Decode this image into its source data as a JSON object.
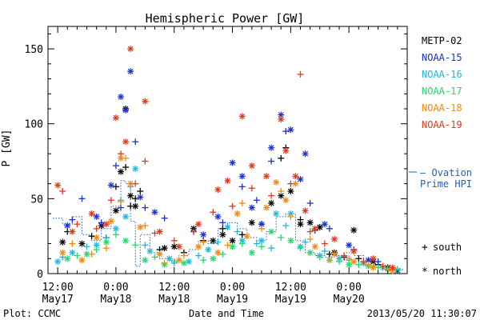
{
  "chart_data": {
    "type": "scatter",
    "title": "Hemispheric Power [GW]",
    "xlabel": "Date and Time",
    "ylabel": "P [GW]",
    "ylim": [
      0,
      165
    ],
    "xlim_hours": [
      -2,
      72
    ],
    "yticks": [
      0,
      50,
      100,
      150
    ],
    "xticks": [
      {
        "hours": 0,
        "time": "12:00",
        "date": "May17"
      },
      {
        "hours": 12,
        "time": "0:00",
        "date": "May18"
      },
      {
        "hours": 24,
        "time": "12:00",
        "date": "May18"
      },
      {
        "hours": 36,
        "time": "0:00",
        "date": "May19"
      },
      {
        "hours": 48,
        "time": "12:00",
        "date": "May19"
      },
      {
        "hours": 60,
        "time": "0:00",
        "date": "May20"
      }
    ],
    "grid": false,
    "footer_left": "Plot: CCMC",
    "footer_right": "2013/05/20 11:30:07",
    "symbol_legend": [
      {
        "symbol": "+",
        "label": "south"
      },
      {
        "symbol": "*",
        "label": "north"
      }
    ],
    "ovation_label": [
      "— Ovation",
      "Prime HPI"
    ],
    "ovation_color": "#1f5fbf",
    "series": [
      {
        "name": "METP-02",
        "color": "#000000",
        "north": [
          [
            1,
            21
          ],
          [
            5,
            20
          ],
          [
            9,
            32
          ],
          [
            12,
            42
          ],
          [
            13,
            68
          ],
          [
            14,
            110
          ],
          [
            15,
            52
          ],
          [
            16,
            45
          ],
          [
            22,
            17
          ],
          [
            24,
            18
          ],
          [
            28,
            30
          ],
          [
            32,
            22
          ],
          [
            34,
            26
          ],
          [
            36,
            22
          ],
          [
            40,
            34
          ],
          [
            44,
            47
          ],
          [
            46,
            52
          ],
          [
            48,
            55
          ],
          [
            50,
            33
          ],
          [
            52,
            34
          ],
          [
            54,
            31
          ],
          [
            57,
            14
          ],
          [
            61,
            29
          ],
          [
            65,
            8
          ],
          [
            68,
            4
          ]
        ],
        "south": [
          [
            2,
            28
          ],
          [
            7,
            25
          ],
          [
            10,
            24
          ],
          [
            12,
            58
          ],
          [
            14,
            71
          ],
          [
            15,
            45
          ],
          [
            16,
            50
          ],
          [
            17,
            55
          ],
          [
            21,
            16
          ],
          [
            26,
            14
          ],
          [
            30,
            22
          ],
          [
            34,
            30
          ],
          [
            38,
            26
          ],
          [
            42,
            33
          ],
          [
            46,
            77
          ],
          [
            47,
            84
          ],
          [
            50,
            36
          ],
          [
            53,
            29
          ],
          [
            56,
            13
          ],
          [
            59,
            11
          ],
          [
            62,
            10
          ],
          [
            66,
            6
          ]
        ]
      },
      {
        "name": "NOAA-15",
        "color": "#1a2fd6",
        "north": [
          [
            2,
            32
          ],
          [
            8,
            38
          ],
          [
            11,
            59
          ],
          [
            13,
            118
          ],
          [
            14,
            109
          ],
          [
            15,
            135
          ],
          [
            17,
            51
          ],
          [
            20,
            41
          ],
          [
            30,
            26
          ],
          [
            33,
            38
          ],
          [
            36,
            74
          ],
          [
            38,
            65
          ],
          [
            40,
            44
          ],
          [
            42,
            33
          ],
          [
            44,
            84
          ],
          [
            46,
            106
          ],
          [
            48,
            96
          ],
          [
            50,
            63
          ],
          [
            51,
            80
          ],
          [
            55,
            33
          ],
          [
            60,
            19
          ],
          [
            64,
            9
          ],
          [
            68,
            3
          ],
          [
            70,
            2
          ]
        ],
        "south": [
          [
            3,
            36
          ],
          [
            5,
            50
          ],
          [
            9,
            34
          ],
          [
            12,
            72
          ],
          [
            13,
            44
          ],
          [
            16,
            88
          ],
          [
            18,
            44
          ],
          [
            22,
            37
          ],
          [
            28,
            28
          ],
          [
            34,
            34
          ],
          [
            38,
            58
          ],
          [
            41,
            49
          ],
          [
            44,
            75
          ],
          [
            47,
            95
          ],
          [
            52,
            47
          ],
          [
            56,
            30
          ],
          [
            61,
            16
          ],
          [
            66,
            8
          ],
          [
            69,
            3
          ]
        ]
      },
      {
        "name": "NOAA-16",
        "color": "#1fb6d9",
        "north": [
          [
            0,
            8
          ],
          [
            3,
            14
          ],
          [
            8,
            19
          ],
          [
            12,
            30
          ],
          [
            14,
            38
          ],
          [
            16,
            70
          ],
          [
            19,
            15
          ],
          [
            23,
            10
          ],
          [
            27,
            8
          ],
          [
            31,
            16
          ],
          [
            35,
            31
          ],
          [
            38,
            22
          ],
          [
            42,
            22
          ],
          [
            45,
            40
          ],
          [
            48,
            40
          ],
          [
            50,
            18
          ],
          [
            54,
            12
          ],
          [
            58,
            10
          ],
          [
            63,
            7
          ],
          [
            67,
            4
          ]
        ],
        "south": [
          [
            1,
            11
          ],
          [
            6,
            18
          ],
          [
            10,
            24
          ],
          [
            13,
            49
          ],
          [
            15,
            58
          ],
          [
            18,
            19
          ],
          [
            24,
            7
          ],
          [
            29,
            12
          ],
          [
            33,
            21
          ],
          [
            37,
            28
          ],
          [
            41,
            20
          ],
          [
            44,
            17
          ],
          [
            47,
            32
          ],
          [
            51,
            21
          ],
          [
            55,
            15
          ],
          [
            60,
            9
          ],
          [
            65,
            5
          ],
          [
            70,
            3
          ]
        ]
      },
      {
        "name": "NOAA-17",
        "color": "#21d96a",
        "north": [
          [
            2,
            10
          ],
          [
            6,
            13
          ],
          [
            10,
            21
          ],
          [
            14,
            22
          ],
          [
            18,
            9
          ],
          [
            22,
            6
          ],
          [
            26,
            7
          ],
          [
            32,
            10
          ],
          [
            36,
            18
          ],
          [
            40,
            14
          ],
          [
            44,
            28
          ],
          [
            48,
            22
          ],
          [
            52,
            14
          ],
          [
            56,
            9
          ],
          [
            60,
            6
          ],
          [
            64,
            5
          ],
          [
            68,
            3
          ]
        ],
        "south": [
          [
            4,
            12
          ],
          [
            8,
            16
          ],
          [
            12,
            26
          ],
          [
            16,
            19
          ],
          [
            20,
            11
          ],
          [
            24,
            8
          ],
          [
            30,
            9
          ],
          [
            34,
            13
          ],
          [
            38,
            20
          ],
          [
            42,
            18
          ],
          [
            46,
            24
          ],
          [
            50,
            17
          ],
          [
            54,
            11
          ],
          [
            58,
            8
          ],
          [
            62,
            6
          ],
          [
            66,
            4
          ],
          [
            70,
            2
          ]
        ]
      },
      {
        "name": "NOAA-18",
        "color": "#f08a10",
        "north": [
          [
            1,
            14
          ],
          [
            5,
            9
          ],
          [
            8,
            24
          ],
          [
            11,
            35
          ],
          [
            13,
            77
          ],
          [
            15,
            60
          ],
          [
            17,
            31
          ],
          [
            21,
            13
          ],
          [
            25,
            9
          ],
          [
            29,
            18
          ],
          [
            33,
            14
          ],
          [
            37,
            40
          ],
          [
            39,
            25
          ],
          [
            43,
            44
          ],
          [
            45,
            61
          ],
          [
            47,
            49
          ],
          [
            49,
            60
          ],
          [
            53,
            18
          ],
          [
            57,
            13
          ],
          [
            61,
            8
          ],
          [
            65,
            4
          ],
          [
            69,
            2
          ]
        ],
        "south": [
          [
            3,
            20
          ],
          [
            7,
            13
          ],
          [
            10,
            17
          ],
          [
            13,
            48
          ],
          [
            14,
            77
          ],
          [
            18,
            32
          ],
          [
            22,
            7
          ],
          [
            26,
            12
          ],
          [
            30,
            21
          ],
          [
            35,
            19
          ],
          [
            38,
            47
          ],
          [
            42,
            30
          ],
          [
            46,
            55
          ],
          [
            48,
            38
          ],
          [
            52,
            23
          ],
          [
            56,
            9
          ],
          [
            60,
            10
          ],
          [
            64,
            6
          ],
          [
            68,
            3
          ]
        ]
      },
      {
        "name": "NOAA-19",
        "color": "#e03a1a",
        "north": [
          [
            0,
            59
          ],
          [
            3,
            28
          ],
          [
            7,
            40
          ],
          [
            10,
            33
          ],
          [
            12,
            104
          ],
          [
            14,
            88
          ],
          [
            15,
            150
          ],
          [
            18,
            115
          ],
          [
            21,
            28
          ],
          [
            25,
            18
          ],
          [
            29,
            33
          ],
          [
            33,
            56
          ],
          [
            35,
            62
          ],
          [
            38,
            105
          ],
          [
            40,
            72
          ],
          [
            43,
            65
          ],
          [
            46,
            103
          ],
          [
            47,
            82
          ],
          [
            49,
            65
          ],
          [
            51,
            42
          ],
          [
            53,
            30
          ],
          [
            57,
            23
          ],
          [
            61,
            15
          ],
          [
            65,
            10
          ],
          [
            69,
            4
          ]
        ],
        "south": [
          [
            1,
            55
          ],
          [
            4,
            33
          ],
          [
            8,
            30
          ],
          [
            11,
            49
          ],
          [
            13,
            80
          ],
          [
            16,
            60
          ],
          [
            18,
            75
          ],
          [
            20,
            27
          ],
          [
            24,
            22
          ],
          [
            28,
            28
          ],
          [
            32,
            41
          ],
          [
            36,
            45
          ],
          [
            40,
            57
          ],
          [
            44,
            52
          ],
          [
            48,
            60
          ],
          [
            50,
            133
          ],
          [
            52,
            28
          ],
          [
            55,
            20
          ],
          [
            59,
            12
          ],
          [
            63,
            8
          ],
          [
            67,
            5
          ]
        ]
      }
    ],
    "ovation": [
      [
        -1,
        37
      ],
      [
        1,
        33
      ],
      [
        3,
        38
      ],
      [
        5,
        26
      ],
      [
        7,
        22
      ],
      [
        9,
        30
      ],
      [
        11,
        45
      ],
      [
        13,
        62
      ],
      [
        14,
        60
      ],
      [
        15,
        35
      ],
      [
        16,
        5
      ],
      [
        17,
        26
      ],
      [
        19,
        14
      ],
      [
        21,
        10
      ],
      [
        23,
        9
      ],
      [
        25,
        12
      ],
      [
        27,
        16
      ],
      [
        29,
        22
      ],
      [
        31,
        20
      ],
      [
        33,
        30
      ],
      [
        35,
        34
      ],
      [
        37,
        30
      ],
      [
        39,
        24
      ],
      [
        41,
        22
      ],
      [
        43,
        28
      ],
      [
        45,
        38
      ],
      [
        47,
        40
      ],
      [
        49,
        22
      ],
      [
        51,
        14
      ],
      [
        53,
        12
      ],
      [
        55,
        11
      ],
      [
        57,
        12
      ],
      [
        59,
        14
      ],
      [
        61,
        12
      ],
      [
        63,
        8
      ],
      [
        65,
        6
      ],
      [
        67,
        4
      ],
      [
        69,
        3
      ],
      [
        71,
        2
      ]
    ]
  }
}
